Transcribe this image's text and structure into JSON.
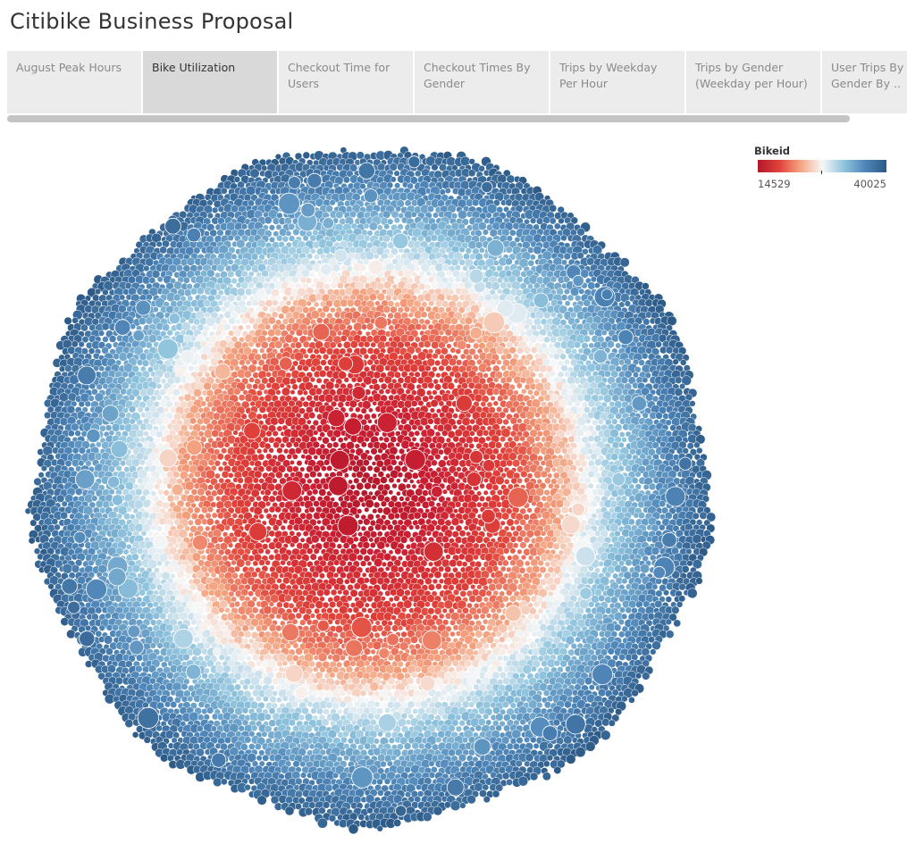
{
  "page": {
    "title": "Citibike Business Proposal"
  },
  "tabs": [
    {
      "label": "August Peak Hours",
      "active": false
    },
    {
      "label": "Bike Utilization",
      "active": true
    },
    {
      "label": "Checkout Time for Users",
      "active": false
    },
    {
      "label": "Checkout Times By Gender",
      "active": false
    },
    {
      "label": "Trips by Weekday Per Hour",
      "active": false
    },
    {
      "label": "Trips by Gender (Weekday per Hour)",
      "active": false
    },
    {
      "label": "User Trips By Gender By ..",
      "active": false
    }
  ],
  "legend": {
    "title": "Bikeid",
    "min_label": "14529",
    "max_label": "40025",
    "colors": [
      "#b2182b",
      "#e0423a",
      "#f4a582",
      "#f7f7f7",
      "#92c5de",
      "#4f86b8",
      "#2d5a87"
    ]
  },
  "chart_data": {
    "type": "bubble",
    "color_field": "Bikeid",
    "color_range": [
      14529,
      40025
    ],
    "layout": "packed circle, lowest Bikeid at center, highest Bikeid at outer rim",
    "colors": {
      "low": "#b2182b",
      "mid_low": "#f4a582",
      "mid": "#f7f7f7",
      "mid_high": "#92c5de",
      "high": "#2d5a87"
    }
  }
}
